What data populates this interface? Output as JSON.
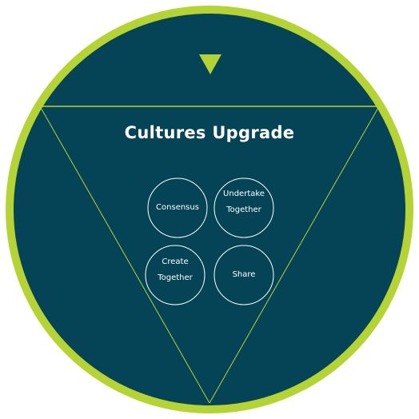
{
  "diagram": {
    "title": "Cultures Upgrade",
    "colors": {
      "background": "#ffffff",
      "circle_fill": "#054357",
      "ring": "#B5D334",
      "lines": "#B5D334",
      "bubble_outline": "#ffffff",
      "text": "#ffffff"
    },
    "indicator": "triangle-down-icon",
    "bubbles": [
      {
        "lines": [
          "Consensus"
        ]
      },
      {
        "lines": [
          "Undertake",
          "Together"
        ]
      },
      {
        "lines": [
          "Create",
          "Together"
        ]
      },
      {
        "lines": [
          "Share"
        ]
      }
    ]
  }
}
